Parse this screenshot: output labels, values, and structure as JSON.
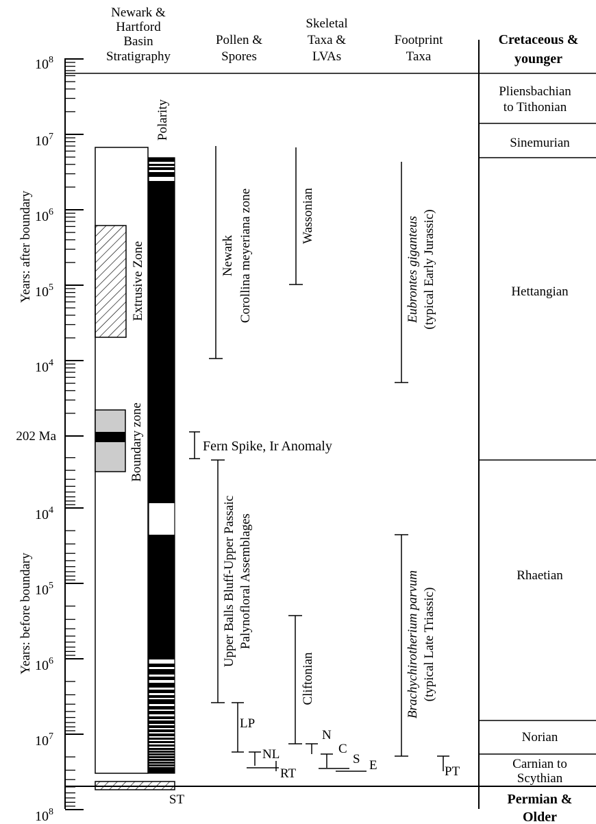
{
  "headers": {
    "stratigraphy": [
      "Newark &",
      "Hartford",
      "Basin",
      "Stratigraphy"
    ],
    "pollen": [
      "Pollen &",
      "Spores"
    ],
    "skeletal": [
      "Skeletal",
      "Taxa &",
      "LVAs"
    ],
    "footprint": [
      "Footprint",
      "Taxa"
    ],
    "stages_top": [
      "Cretaceous &",
      "younger"
    ]
  },
  "axis": {
    "label_after": "Years: after boundary",
    "label_before": "Years: before  boundary",
    "boundary_label": "202 Ma",
    "ticks_after": [
      {
        "base": "10",
        "exp": "8"
      },
      {
        "base": "10",
        "exp": "7"
      },
      {
        "base": "10",
        "exp": "6"
      },
      {
        "base": "10",
        "exp": "5"
      },
      {
        "base": "10",
        "exp": "4"
      }
    ],
    "ticks_before": [
      {
        "base": "10",
        "exp": "4"
      },
      {
        "base": "10",
        "exp": "5"
      },
      {
        "base": "10",
        "exp": "6"
      },
      {
        "base": "10",
        "exp": "7"
      },
      {
        "base": "10",
        "exp": "8"
      }
    ]
  },
  "column_labels": {
    "polarity": "Polarity",
    "extrusive": "Extrusive Zone",
    "boundary_zone": "Boundary zone",
    "st": "ST"
  },
  "ranges": {
    "newark_1": "Newark",
    "newark_2": "Corollina meyeriana zone",
    "fern": "Fern Spike, Ir Anomaly",
    "upper_1": "Upper Balls Bluff-Upper Passaic",
    "upper_2": "Palynofloral Assemblages",
    "lp": "LP",
    "nl": "NL",
    "rt": "RT",
    "wassonian": "Wassonian",
    "cliftonian": "Cliftonian",
    "n": "N",
    "c": "C",
    "s": "S",
    "e": "E",
    "eubrontes_1": "Eubrontes giganteus",
    "eubrontes_2": "(typical Early Jurassic)",
    "brachy_1": "Brachychirotherium parvum",
    "brachy_2": "(typical Late Triassic)",
    "pt": "PT"
  },
  "stages": {
    "pliens_1": "Pliensbachian",
    "pliens_2": "to Tithonian",
    "sinemurian": "Sinemurian",
    "hettangian": "Hettangian",
    "rhaetian": "Rhaetian",
    "norian": "Norian",
    "carnian_1": "Carnian to",
    "carnian_2": "Scythian",
    "permian_1": "Permian &",
    "permian_2": "Older"
  },
  "colors": {
    "ink": "#000000",
    "boundary_zone_fill": "#cccccc"
  }
}
